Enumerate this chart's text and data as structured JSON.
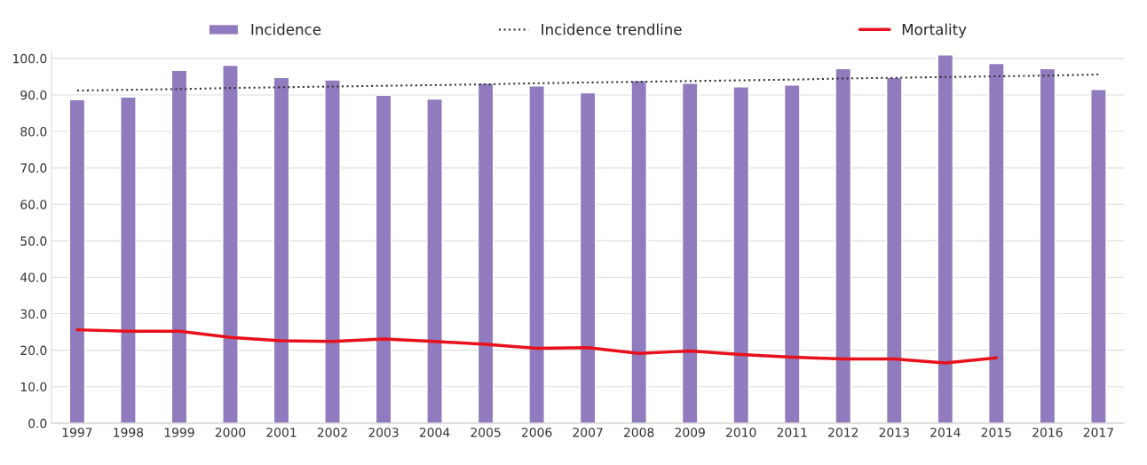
{
  "chart_data": {
    "type": "bar",
    "categories": [
      "1997",
      "1998",
      "1999",
      "2000",
      "2001",
      "2002",
      "2003",
      "2004",
      "2005",
      "2006",
      "2007",
      "2008",
      "2009",
      "2010",
      "2011",
      "2012",
      "2013",
      "2014",
      "2015",
      "2016",
      "2017"
    ],
    "series": [
      {
        "name": "Incidence",
        "color": "#8f7bbd",
        "values": [
          88.7,
          89.4,
          96.7,
          98.1,
          94.8,
          94.1,
          89.9,
          88.9,
          93.2,
          92.5,
          90.6,
          93.9,
          93.2,
          92.2,
          92.7,
          97.2,
          94.8,
          101.0,
          98.6,
          97.2,
          91.5
        ]
      },
      {
        "name": "Incidence trendline",
        "type": "line",
        "color": "#333333",
        "line_style": "dotted",
        "values": [
          91.2,
          91.4,
          91.6,
          91.9,
          92.1,
          92.3,
          92.5,
          92.7,
          92.9,
          93.2,
          93.4,
          93.6,
          93.8,
          94.0,
          94.2,
          94.5,
          94.7,
          94.9,
          95.1,
          95.3,
          95.6
        ]
      },
      {
        "name": "Mortality",
        "type": "line",
        "color": "#e8101a",
        "line_style": "solid",
        "values": [
          25.6,
          25.2,
          25.2,
          23.5,
          22.6,
          22.4,
          23.1,
          22.4,
          21.6,
          20.5,
          20.7,
          19.1,
          19.8,
          18.8,
          18.1,
          17.6,
          17.6,
          16.5,
          17.9,
          null,
          null
        ]
      }
    ],
    "ylim": [
      0,
      102
    ],
    "yticks": [
      {
        "value": 0,
        "label": "0.0"
      },
      {
        "value": 10,
        "label": "10.0"
      },
      {
        "value": 20,
        "label": "20.0"
      },
      {
        "value": 30,
        "label": "30.0"
      },
      {
        "value": 40,
        "label": "40.0"
      },
      {
        "value": 50,
        "label": "50.0"
      },
      {
        "value": 60,
        "label": "60.0"
      },
      {
        "value": 70,
        "label": "70.0"
      },
      {
        "value": 80,
        "label": "80.0"
      },
      {
        "value": 90,
        "label": "90.0"
      },
      {
        "value": 100,
        "label": "100.0"
      }
    ],
    "grid": "y",
    "legend": "top"
  }
}
